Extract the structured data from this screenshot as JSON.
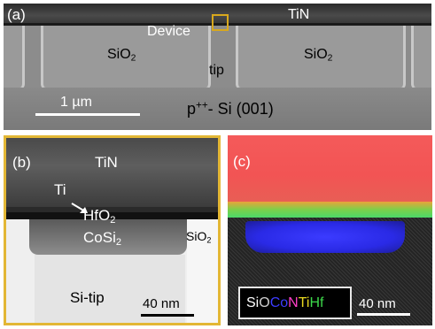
{
  "panel_a": {
    "label": "(a)",
    "tin": "TiN",
    "device": "Device",
    "sio2_left": "SiO",
    "sio2_left_sub": "2",
    "sio2_right": "SiO",
    "sio2_right_sub": "2",
    "tip": "tip",
    "substrate": "p",
    "substrate_sup": "++",
    "substrate_rest": "- Si (001)",
    "scale": "1 µm",
    "colors": {
      "box": "#d8a81d"
    }
  },
  "panel_b": {
    "label": "(b)",
    "tin": "TiN",
    "ti": "Ti",
    "hfo2": "HfO",
    "hfo2_sub": "2",
    "cosi2": "CoSi",
    "cosi2_sub": "2",
    "sio2": "SiO",
    "sio2_sub": "2",
    "si_tip": "Si-tip",
    "scale": "40 nm",
    "colors": {
      "border": "#e3b735"
    }
  },
  "panel_c": {
    "label": "(c)",
    "legend": [
      {
        "text": "Si",
        "color": "#ffffff"
      },
      {
        "text": "O",
        "color": "#d0d0d0"
      },
      {
        "text": "Co",
        "color": "#3c3cff"
      },
      {
        "text": "N",
        "color": "#ff40c8"
      },
      {
        "text": "Ti",
        "color": "#e8d820"
      },
      {
        "text": "Hf",
        "color": "#3cd84a"
      }
    ],
    "scale": "40 nm",
    "colors": {
      "hf": "#f25454",
      "co": "#2a2ae6",
      "ti": "#7ccf4a"
    }
  }
}
